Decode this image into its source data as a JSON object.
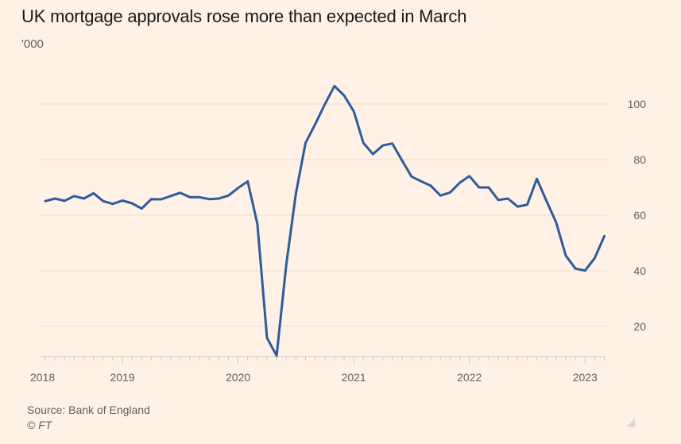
{
  "header": {
    "title": "UK mortgage approvals rose more than expected in March",
    "unit": "'000"
  },
  "footer": {
    "source": "Source: Bank of England",
    "copyright": "© FT"
  },
  "colors": {
    "background": "#fff1e5",
    "line": "#2e5c99",
    "grid": "#ede1d6",
    "axis": "#cfc4bb",
    "text": "#66605c"
  },
  "chart_data": {
    "type": "line",
    "title": "UK mortgage approvals rose more than expected in March",
    "xlabel": "",
    "ylabel": "'000",
    "ylim": [
      9,
      107
    ],
    "yticks": [
      20,
      40,
      60,
      80,
      100
    ],
    "ytick_labels": [
      "20",
      "40",
      "60",
      "80",
      "100"
    ],
    "y_axis_side": "right",
    "grid": true,
    "xtick_labels": [
      "2018",
      "2019",
      "2020",
      "2021",
      "2022",
      "2023"
    ],
    "x_start": "2018-05",
    "x_end": "2023-03",
    "frequency": "monthly",
    "series": [
      {
        "name": "Mortgage approvals",
        "x": [
          "2018-05",
          "2018-06",
          "2018-07",
          "2018-08",
          "2018-09",
          "2018-10",
          "2018-11",
          "2018-12",
          "2019-01",
          "2019-02",
          "2019-03",
          "2019-04",
          "2019-05",
          "2019-06",
          "2019-07",
          "2019-08",
          "2019-09",
          "2019-10",
          "2019-11",
          "2019-12",
          "2020-01",
          "2020-02",
          "2020-03",
          "2020-04",
          "2020-05",
          "2020-06",
          "2020-07",
          "2020-08",
          "2020-09",
          "2020-10",
          "2020-11",
          "2020-12",
          "2021-01",
          "2021-02",
          "2021-03",
          "2021-04",
          "2021-05",
          "2021-06",
          "2021-07",
          "2021-08",
          "2021-09",
          "2021-10",
          "2021-11",
          "2021-12",
          "2022-01",
          "2022-02",
          "2022-03",
          "2022-04",
          "2022-05",
          "2022-06",
          "2022-07",
          "2022-08",
          "2022-09",
          "2022-10",
          "2022-11",
          "2022-12",
          "2023-01",
          "2023-02",
          "2023-03"
        ],
        "values": [
          65.1,
          66.0,
          65.2,
          66.9,
          66.0,
          67.9,
          65.1,
          64.1,
          65.3,
          64.3,
          62.4,
          65.8,
          65.7,
          66.9,
          68.1,
          66.5,
          66.5,
          65.8,
          66.0,
          67.1,
          69.8,
          72.2,
          56.9,
          15.9,
          9.5,
          42.3,
          67.9,
          86.0,
          92.7,
          99.9,
          106.5,
          103.1,
          97.4,
          86.0,
          82.0,
          85.1,
          85.8,
          79.8,
          73.9,
          72.2,
          70.6,
          67.1,
          68.2,
          71.7,
          74.1,
          70.0,
          70.0,
          65.5,
          66.0,
          63.1,
          63.8,
          73.1,
          65.1,
          57.4,
          45.5,
          40.8,
          40.1,
          44.6,
          52.5
        ]
      }
    ]
  }
}
